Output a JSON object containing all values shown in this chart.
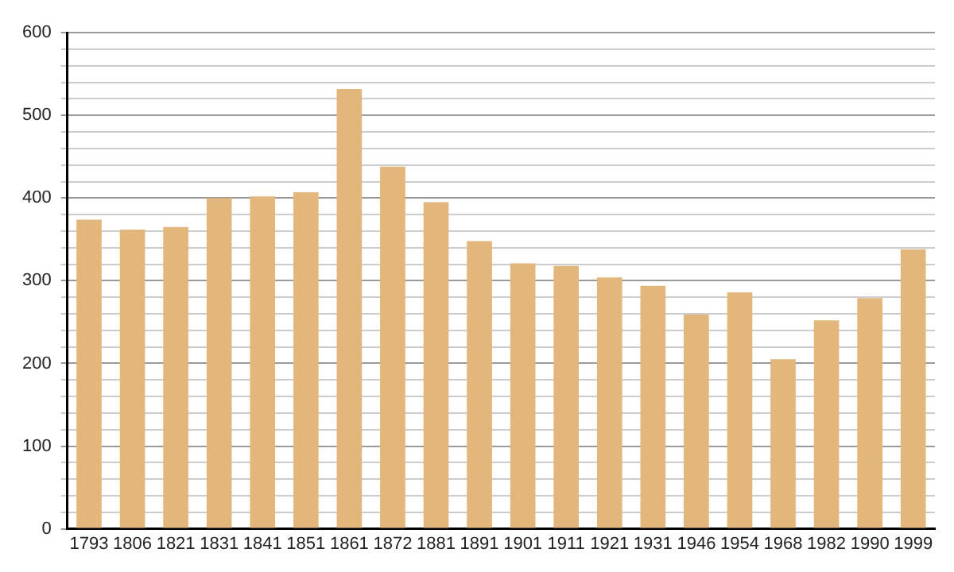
{
  "chart_data": {
    "type": "bar",
    "categories": [
      "1793",
      "1806",
      "1821",
      "1831",
      "1841",
      "1851",
      "1861",
      "1872",
      "1881",
      "1891",
      "1901",
      "1911",
      "1921",
      "1931",
      "1946",
      "1954",
      "1968",
      "1982",
      "1990",
      "1999"
    ],
    "values": [
      374,
      362,
      365,
      400,
      402,
      407,
      532,
      438,
      395,
      348,
      321,
      318,
      304,
      294,
      259,
      286,
      205,
      252,
      279,
      338
    ],
    "color": "#e3b67c",
    "ylim": [
      0,
      600
    ],
    "yticks": [
      0,
      {
        "value": 20,
        "label": null
      },
      {
        "value": 40,
        "label": null
      },
      {
        "value": 60,
        "label": null
      },
      {
        "value": 80,
        "label": null
      },
      100,
      {
        "value": 120,
        "label": null
      },
      {
        "value": 140,
        "label": null
      },
      {
        "value": 160,
        "label": null
      },
      {
        "value": 180,
        "label": null
      },
      200,
      {
        "value": 220,
        "label": null
      },
      {
        "value": 240,
        "label": null
      },
      {
        "value": 260,
        "label": null
      },
      {
        "value": 280,
        "label": null
      },
      300,
      {
        "value": 320,
        "label": null
      },
      {
        "value": 340,
        "label": null
      },
      {
        "value": 360,
        "label": null
      },
      {
        "value": 380,
        "label": null
      },
      400,
      {
        "value": 420,
        "label": null
      },
      {
        "value": 440,
        "label": null
      },
      {
        "value": 460,
        "label": null
      },
      {
        "value": 480,
        "label": null
      },
      500,
      {
        "value": 520,
        "label": null
      },
      {
        "value": 540,
        "label": null
      },
      {
        "value": 560,
        "label": null
      },
      {
        "value": 580,
        "label": null
      },
      600
    ],
    "grid": "y"
  }
}
